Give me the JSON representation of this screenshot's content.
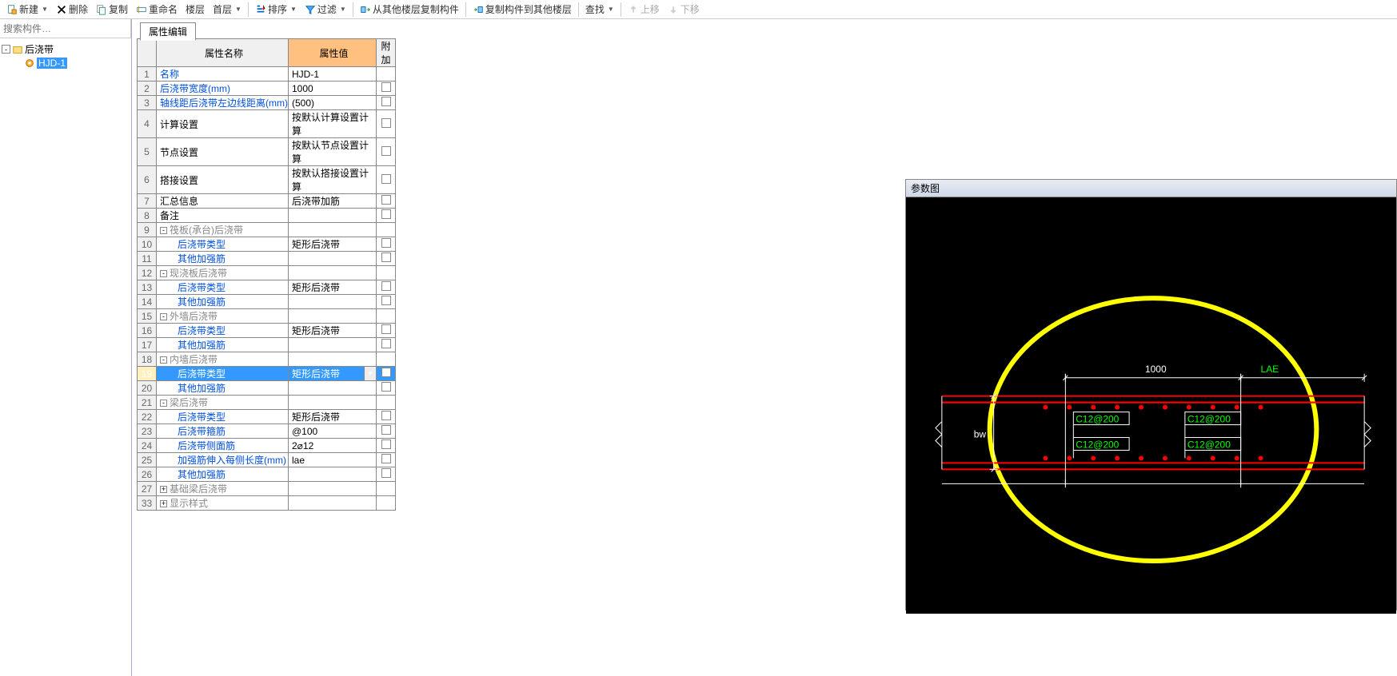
{
  "toolbar": {
    "new": "新建",
    "delete": "删除",
    "copy": "复制",
    "rename": "重命名",
    "floor": "楼层",
    "first_floor": "首层",
    "sort": "排序",
    "filter": "过滤",
    "copy_from": "从其他楼层复制构件",
    "copy_to": "复制构件到其他楼层",
    "find": "查找",
    "move_up": "上移",
    "move_down": "下移"
  },
  "search": {
    "placeholder": "搜索构件…"
  },
  "tree": {
    "root": "后浇带",
    "child": "HJD-1"
  },
  "prop_tab": "属性编辑",
  "headers": {
    "name": "属性名称",
    "value": "属性值",
    "extra": "附加"
  },
  "rows": [
    {
      "n": "1",
      "name": "名称",
      "value": "HJD-1",
      "link": true,
      "cb": false
    },
    {
      "n": "2",
      "name": "后浇带宽度(mm)",
      "value": "1000",
      "link": true,
      "cb": true
    },
    {
      "n": "3",
      "name": "轴线距后浇带左边线距离(mm)",
      "value": "(500)",
      "link": true,
      "cb": true
    },
    {
      "n": "4",
      "name": "计算设置",
      "value": "按默认计算设置计算",
      "link": false,
      "cb": true
    },
    {
      "n": "5",
      "name": "节点设置",
      "value": "按默认节点设置计算",
      "link": false,
      "cb": true
    },
    {
      "n": "6",
      "name": "搭接设置",
      "value": "按默认搭接设置计算",
      "link": false,
      "cb": true
    },
    {
      "n": "7",
      "name": "汇总信息",
      "value": "后浇带加筋",
      "link": false,
      "cb": true
    },
    {
      "n": "8",
      "name": "备注",
      "value": "",
      "link": false,
      "cb": true
    },
    {
      "n": "9",
      "group": "筏板(承台)后浇带",
      "toggle": "-",
      "gray": true
    },
    {
      "n": "10",
      "name": "后浇带类型",
      "value": "矩形后浇带",
      "link": true,
      "indent": 2,
      "cb": true
    },
    {
      "n": "11",
      "name": "其他加强筋",
      "value": "",
      "link": true,
      "indent": 2,
      "cb": true
    },
    {
      "n": "12",
      "group": "现浇板后浇带",
      "toggle": "-",
      "gray": true
    },
    {
      "n": "13",
      "name": "后浇带类型",
      "value": "矩形后浇带",
      "link": true,
      "indent": 2,
      "cb": true
    },
    {
      "n": "14",
      "name": "其他加强筋",
      "value": "",
      "link": true,
      "indent": 2,
      "cb": true
    },
    {
      "n": "15",
      "group": "外墙后浇带",
      "toggle": "-",
      "gray": true
    },
    {
      "n": "16",
      "name": "后浇带类型",
      "value": "矩形后浇带",
      "link": true,
      "indent": 2,
      "cb": true
    },
    {
      "n": "17",
      "name": "其他加强筋",
      "value": "",
      "link": true,
      "indent": 2,
      "cb": true
    },
    {
      "n": "18",
      "group": "内墙后浇带",
      "toggle": "-",
      "gray": true
    },
    {
      "n": "19",
      "name": "后浇带类型",
      "value": "矩形后浇带",
      "link": true,
      "indent": 2,
      "cb": true,
      "selected": true,
      "dropdown": true
    },
    {
      "n": "20",
      "name": "其他加强筋",
      "value": "",
      "link": true,
      "indent": 2,
      "cb": true
    },
    {
      "n": "21",
      "group": "梁后浇带",
      "toggle": "-",
      "gray": true
    },
    {
      "n": "22",
      "name": "后浇带类型",
      "value": "矩形后浇带",
      "link": true,
      "indent": 2,
      "cb": true
    },
    {
      "n": "23",
      "name": "后浇带箍筋",
      "value": "@100",
      "link": true,
      "indent": 2,
      "cb": true
    },
    {
      "n": "24",
      "name": "后浇带侧面筋",
      "value": "2⌀12",
      "link": true,
      "indent": 2,
      "cb": true
    },
    {
      "n": "25",
      "name": "加强筋伸入每侧长度(mm)",
      "value": "lae",
      "link": true,
      "indent": 2,
      "cb": true
    },
    {
      "n": "26",
      "name": "其他加强筋",
      "value": "",
      "link": true,
      "indent": 2,
      "cb": true
    },
    {
      "n": "27",
      "group": "基础梁后浇带",
      "toggle": "+",
      "gray": true
    },
    {
      "n": "33",
      "group": "显示样式",
      "toggle": "+",
      "gray": true
    }
  ],
  "diagram": {
    "title": "参数图",
    "bg": "#000000",
    "ellipse_color": "#ffff00",
    "ellipse_stroke": 6,
    "line_color": "#ff0000",
    "guide_color": "#ffffff",
    "text_color": "#00ff00",
    "bw_label": "bw",
    "width_label": "1000",
    "lae_label": "LAE",
    "rebar_labels": [
      "C12@200",
      "C12@200",
      "C12@200",
      "C12@200"
    ],
    "dot_color": "#ff0000"
  }
}
